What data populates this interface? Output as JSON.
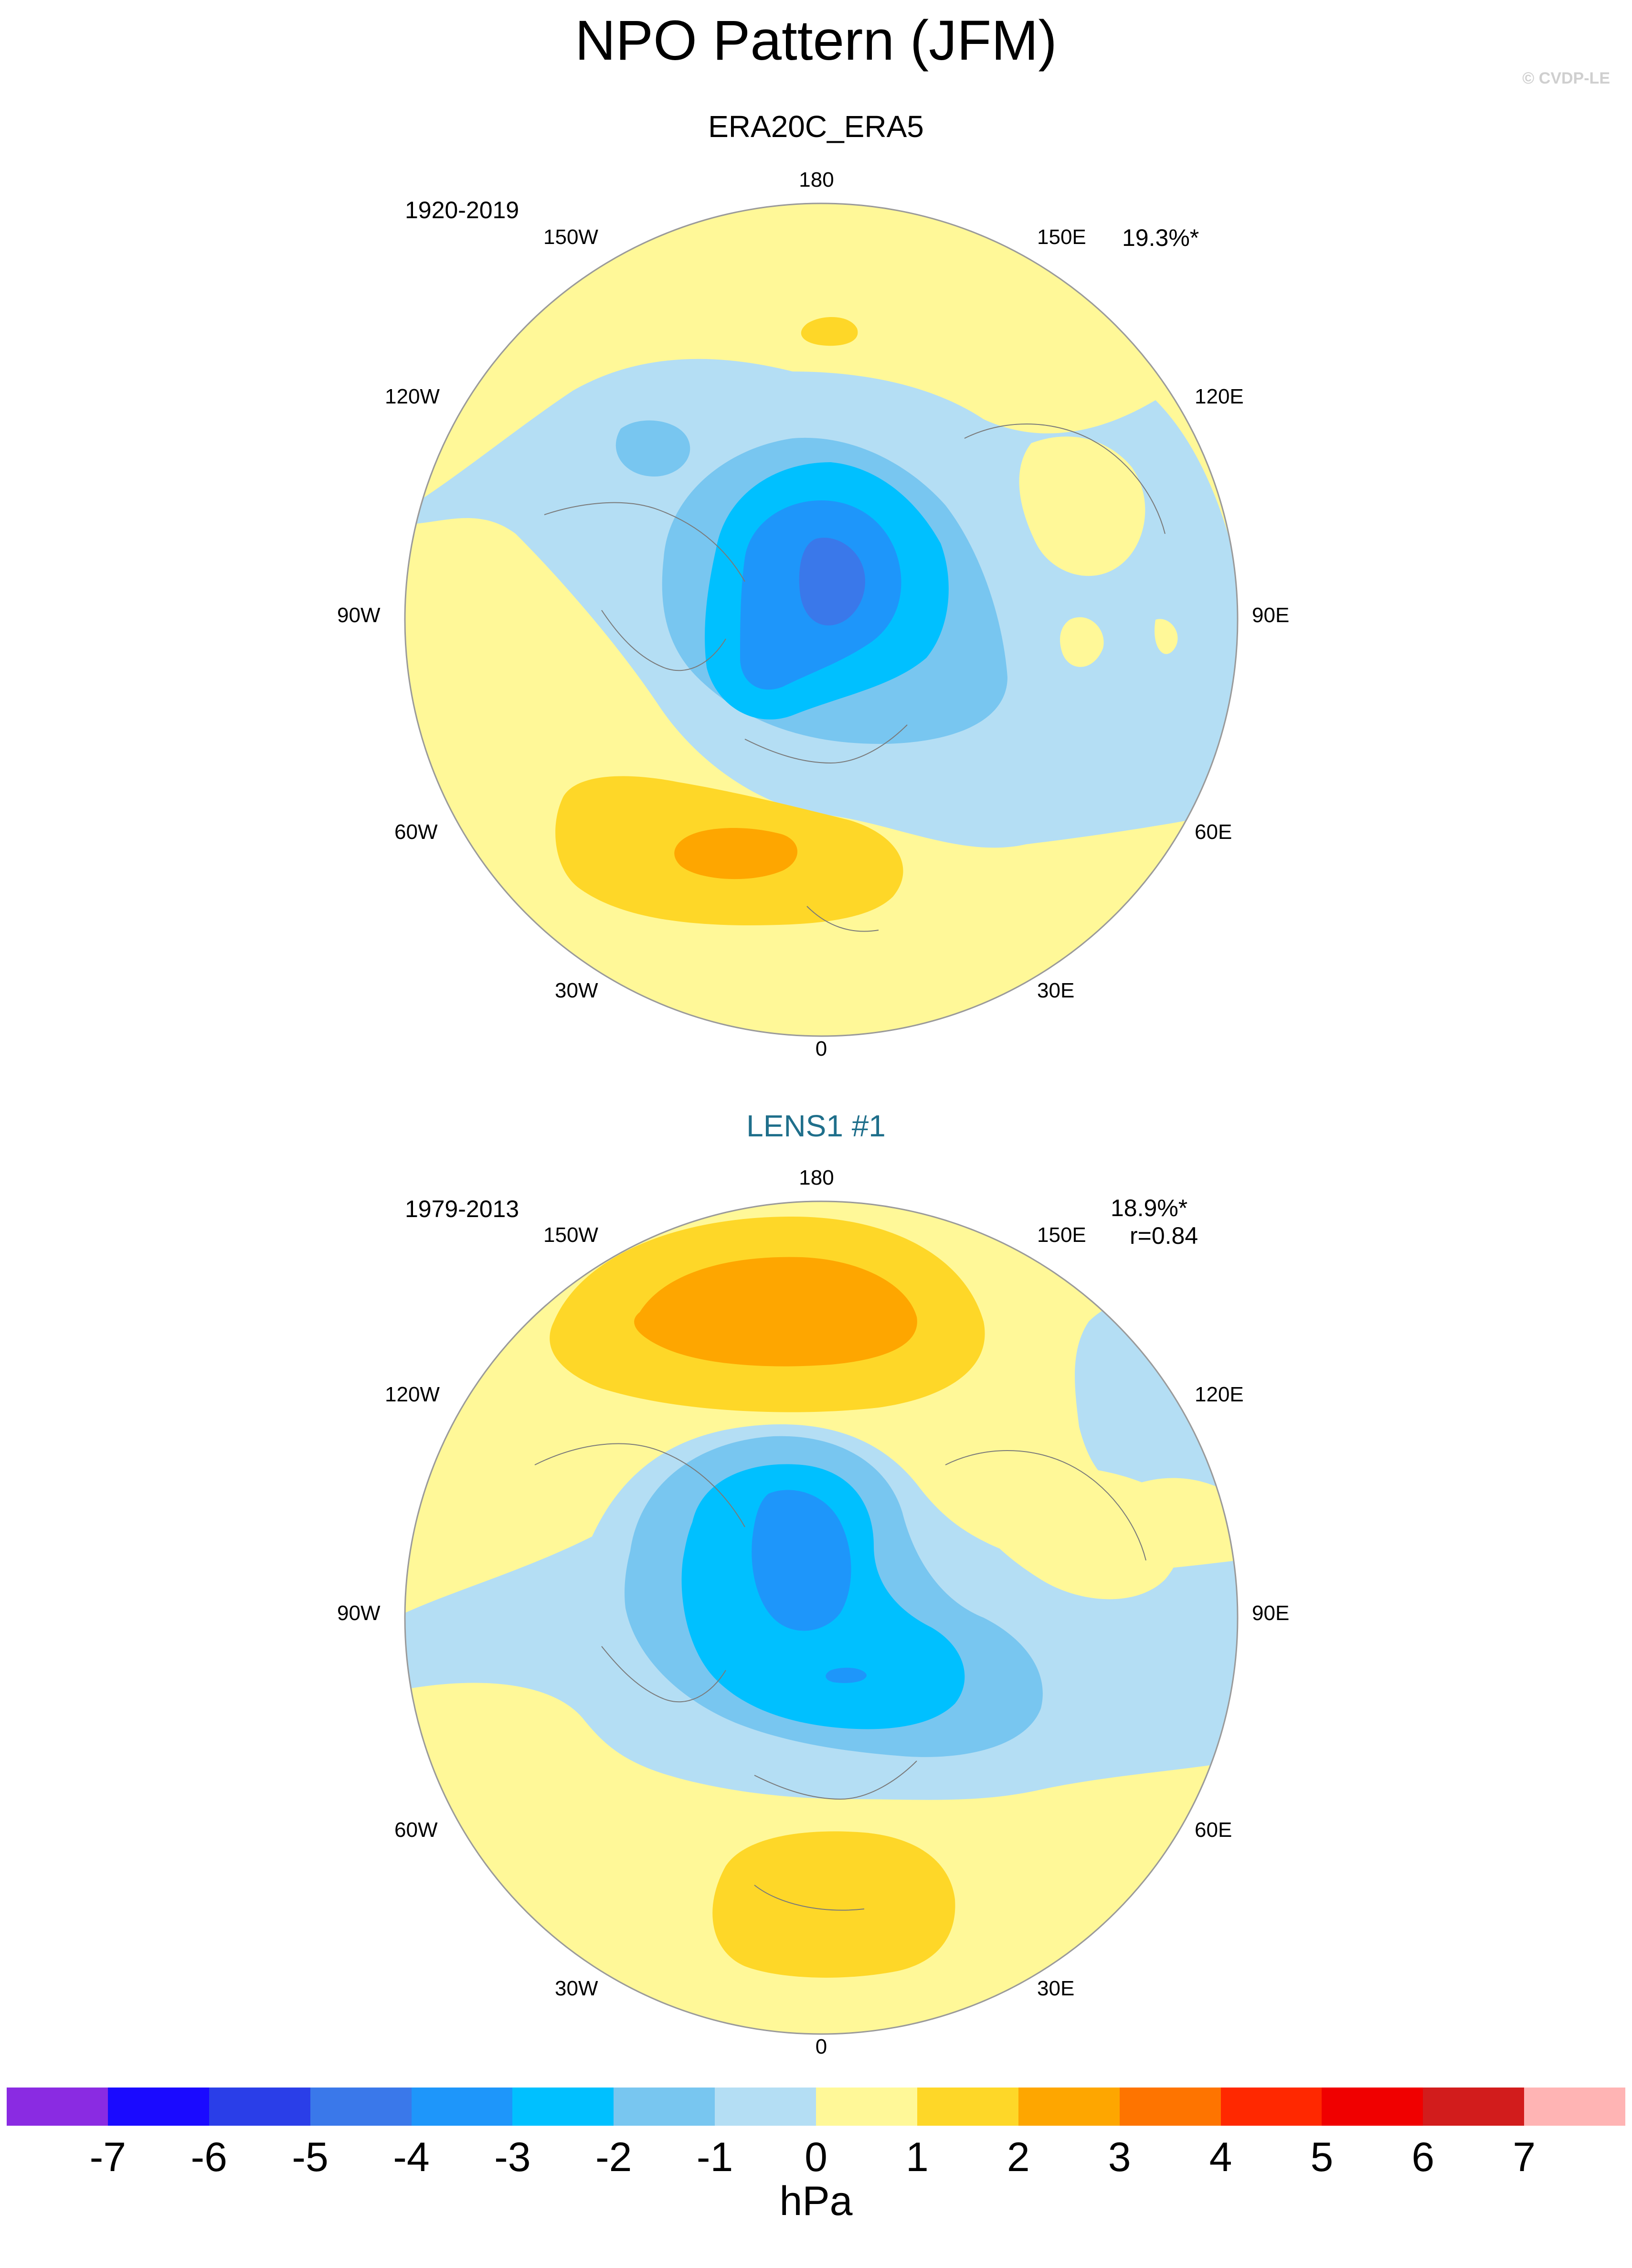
{
  "title": "NPO Pattern (JFM)",
  "copyright": "© CVDP-LE",
  "panels": [
    {
      "title": "ERA20C_ERA5",
      "years": "1920-2019",
      "variance": "19.3%*",
      "corr": "",
      "lon_labels": [
        "180",
        "150E",
        "120E",
        "90E",
        "60E",
        "30E",
        "0",
        "30W",
        "60W",
        "90W",
        "120W",
        "150W"
      ]
    },
    {
      "title": "LENS1 #1",
      "years": "1979-2013",
      "variance": "18.9%*",
      "corr": "r=0.84",
      "lon_labels": [
        "180",
        "150E",
        "120E",
        "90E",
        "60E",
        "30E",
        "0",
        "30W",
        "60W",
        "90W",
        "120W",
        "150W"
      ]
    }
  ],
  "colorbar": {
    "units": "hPa",
    "ticks": [
      "-7",
      "-6",
      "-5",
      "-4",
      "-3",
      "-2",
      "-1",
      "0",
      "1",
      "2",
      "3",
      "4",
      "5",
      "6",
      "7"
    ],
    "colors": [
      "#8a2be2",
      "#1a0aff",
      "#2a3ee8",
      "#3a78ea",
      "#1e96fa",
      "#00c0ff",
      "#78c6f0",
      "#b4def4",
      "#fff898",
      "#fed728",
      "#fea600",
      "#fe7400",
      "#ff2800",
      "#f00000",
      "#d21c1c",
      "#ffb4b4"
    ]
  },
  "map_fill": {
    "background": "#fff898",
    "ring_stroke": "#9a9a9a"
  }
}
